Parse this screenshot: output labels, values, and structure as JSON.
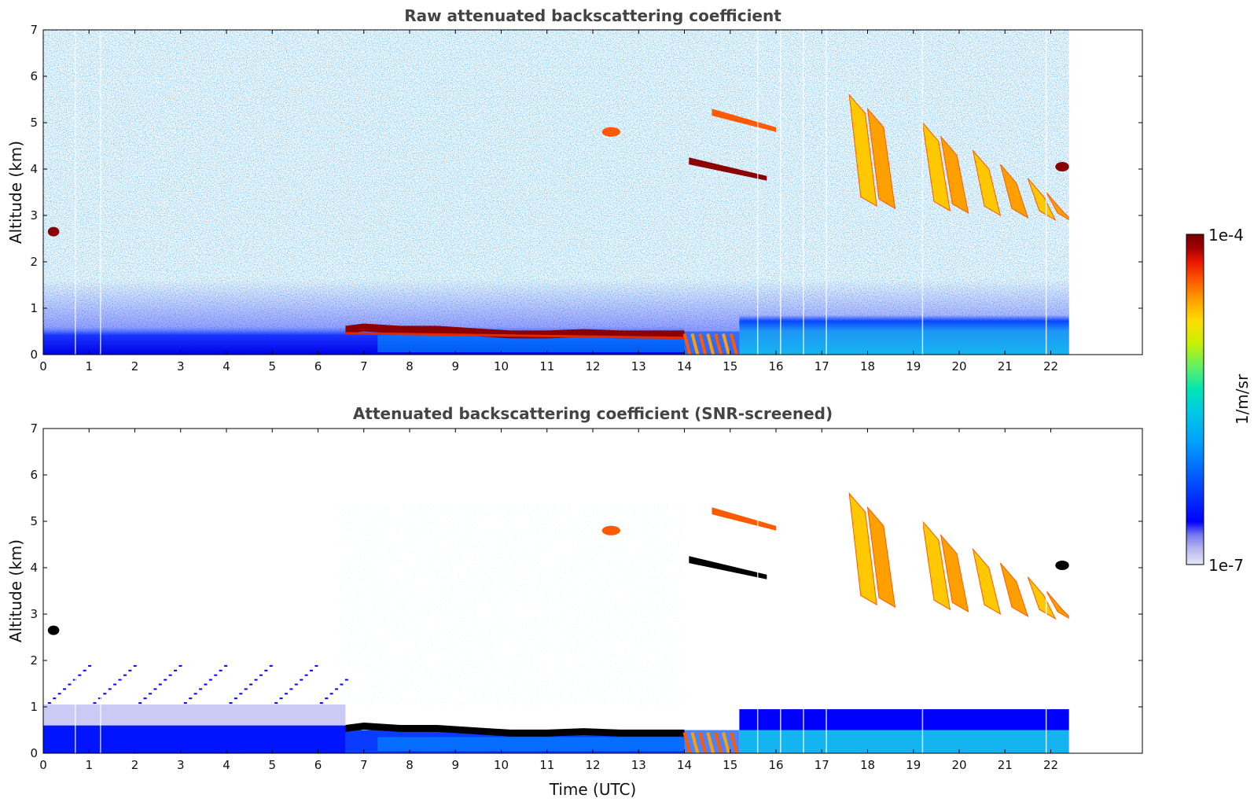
{
  "chart_data": [
    {
      "type": "heatmap",
      "title": "Raw attenuated backscattering coefficient",
      "xlabel": "",
      "ylabel": "Altitude (km)",
      "xlim": [
        0,
        24
      ],
      "ylim": [
        0,
        7
      ],
      "xticks": [
        "0",
        "1",
        "2",
        "3",
        "4",
        "5",
        "6",
        "7",
        "8",
        "9",
        "10",
        "11",
        "12",
        "13",
        "14",
        "15",
        "16",
        "17",
        "18",
        "19",
        "20",
        "21",
        "22"
      ],
      "yticks": [
        "0",
        "1",
        "2",
        "3",
        "4",
        "5",
        "6",
        "7"
      ],
      "data_end_time": 22.4,
      "features": [
        {
          "kind": "boundary-layer-top",
          "t_start": 6.6,
          "t_end": 14.0,
          "altitude_km": 0.5,
          "level": "max"
        },
        {
          "kind": "cloud",
          "t_start": 0.1,
          "t_end": 0.35,
          "altitude_km": 2.65,
          "level": "max"
        },
        {
          "kind": "cloud",
          "t_start": 14.1,
          "t_end": 15.8,
          "altitude_km": 4.1,
          "level": "max"
        },
        {
          "kind": "cloud",
          "t_start": 12.2,
          "t_end": 12.6,
          "altitude_km": 4.8,
          "level": "high"
        },
        {
          "kind": "cloud",
          "t_start": 14.6,
          "t_end": 16.0,
          "altitude_km": 5.15,
          "level": "high"
        },
        {
          "kind": "cirrus",
          "t_start": 17.6,
          "t_end": 22.4,
          "altitude_km": 4.0,
          "level": "medium-high"
        },
        {
          "kind": "cloud",
          "t_start": 22.1,
          "t_end": 22.4,
          "altitude_km": 4.05,
          "level": "max"
        }
      ]
    },
    {
      "type": "heatmap",
      "title": "Attenuated backscattering coefficient (SNR-screened)",
      "xlabel": "Time (UTC)",
      "ylabel": "Altitude (km)",
      "xlim": [
        0,
        24
      ],
      "ylim": [
        0,
        7
      ],
      "xticks": [
        "0",
        "1",
        "2",
        "3",
        "4",
        "5",
        "6",
        "7",
        "8",
        "9",
        "10",
        "11",
        "12",
        "13",
        "14",
        "15",
        "16",
        "17",
        "18",
        "19",
        "20",
        "21",
        "22"
      ],
      "yticks": [
        "0",
        "1",
        "2",
        "3",
        "4",
        "5",
        "6",
        "7"
      ],
      "data_end_time": 22.4
    }
  ],
  "colorbar": {
    "label": "1/m/sr",
    "max_label": "1e-4",
    "min_label": "1e-7",
    "colormap": [
      "#e6e6fa",
      "#b4b4f0",
      "#7878f0",
      "#0000ff",
      "#0050ff",
      "#00a0ff",
      "#00c8e6",
      "#00e6b4",
      "#64f064",
      "#c8f000",
      "#ffdc00",
      "#ffa000",
      "#ff5a00",
      "#e61400",
      "#a00000",
      "#780000"
    ]
  },
  "colors": {
    "layer_max": "#8b0000",
    "screened_peak": "#000000"
  }
}
